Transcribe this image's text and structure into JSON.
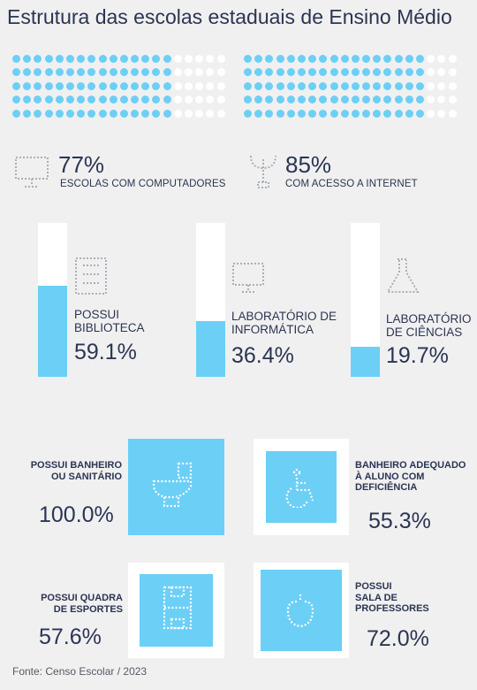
{
  "title": "Estrutura das escolas estaduais de Ensino Médio",
  "colors": {
    "accent": "#6ccff6",
    "text": "#2b3553",
    "background": "#f0f0f0",
    "empty": "#ffffff"
  },
  "top_stats": [
    {
      "id": "computers",
      "percent": "77%",
      "label": "ESCOLAS COM COMPUTADORES",
      "dots_on": 77,
      "dots_total": 100,
      "icon": "computer-icon"
    },
    {
      "id": "internet",
      "percent": "85%",
      "label": "COM ACESSO A INTERNET",
      "dots_on": 85,
      "dots_total": 100,
      "icon": "antenna-icon"
    }
  ],
  "bars": [
    {
      "id": "library",
      "label_line1": "POSSUI",
      "label_line2": "BIBLIOTECA",
      "percent": "59.1%",
      "value": 59.1,
      "icon": "book-icon"
    },
    {
      "id": "computer-lab",
      "label_line1": "LABORATÓRIO DE",
      "label_line2": "INFORMÁTICA",
      "percent": "36.4%",
      "value": 36.4,
      "icon": "monitor-icon"
    },
    {
      "id": "science-lab",
      "label_line1": "LABORATÓRIO",
      "label_line2": "DE CIÊNCIAS",
      "percent": "19.7%",
      "value": 19.7,
      "icon": "flask-icon"
    }
  ],
  "squares": [
    {
      "id": "bathroom",
      "label_line1": "POSSUI BANHEIRO",
      "label_line2": "OU SANITÁRIO",
      "label_line3": "",
      "percent": "100.0%",
      "value": 100.0,
      "icon": "toilet-icon"
    },
    {
      "id": "accessible-bathroom",
      "label_line1": "BANHEIRO ADEQUADO",
      "label_line2": "À ALUNO COM",
      "label_line3": "DEFICIÊNCIA",
      "percent": "55.3%",
      "value": 55.3,
      "icon": "wheelchair-icon"
    },
    {
      "id": "sports-court",
      "label_line1": "POSSUI QUADRA",
      "label_line2": "DE ESPORTES",
      "label_line3": "",
      "percent": "57.6%",
      "value": 57.6,
      "icon": "court-icon"
    },
    {
      "id": "teachers-room",
      "label_line1": "POSSUI",
      "label_line2": "SALA DE",
      "label_line3": "PROFESSORES",
      "percent": "72.0%",
      "value": 72.0,
      "icon": "coffee-cup-icon"
    }
  ],
  "footer": "Fonte: Censo Escolar / 2023"
}
